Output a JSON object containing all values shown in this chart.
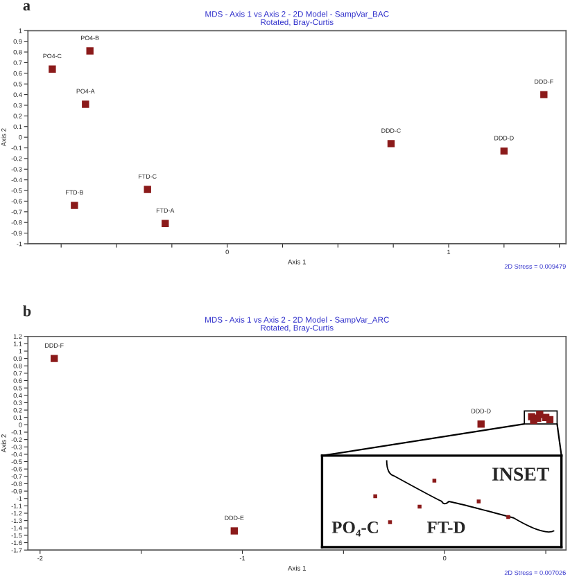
{
  "chart_data": [
    {
      "type": "scatter",
      "title": "MDS - Axis 1 vs Axis 2 - 2D Model - SampVar_BAC",
      "subtitle": "Rotated, Bray-Curtis",
      "xlabel": "Axis 1",
      "ylabel": "Axis 2",
      "marker": "square",
      "legend": false,
      "grid": false,
      "series": [
        {
          "color": "#8b1a1a",
          "x": [
            -0.79,
            -0.62,
            -0.64,
            1.43,
            0.74,
            1.25,
            -0.69,
            -0.36,
            -0.28
          ],
          "values": [
            0.64,
            0.81,
            0.31,
            0.4,
            -0.06,
            -0.13,
            -0.64,
            -0.49,
            -0.81
          ]
        }
      ],
      "xlim": [
        -0.9,
        1.53
      ],
      "xticks": [
        {
          "value": -0.75,
          "label": null
        },
        {
          "value": -0.5,
          "label": null
        },
        {
          "value": -0.25,
          "label": null
        },
        0,
        {
          "value": 0.25,
          "label": null
        },
        {
          "value": 0.5,
          "label": null
        },
        {
          "value": 0.75,
          "label": null
        },
        1,
        {
          "value": 1.25,
          "label": null
        },
        {
          "value": 1.5,
          "label": null
        }
      ],
      "ylim": [
        -1,
        1
      ],
      "yticks": [
        -1,
        -0.9,
        -0.8,
        -0.7,
        -0.6,
        -0.5,
        -0.4,
        -0.3,
        -0.2,
        -0.1,
        0,
        0.1,
        0.2,
        0.3,
        0.4,
        0.5,
        0.6,
        0.7,
        0.8,
        0.9,
        1
      ],
      "annotations": [
        "a",
        "2D Stress = 0.009479",
        {
          "text": "PO4-C",
          "x": -0.79,
          "y": 0.64
        },
        {
          "text": "PO4-B",
          "x": -0.62,
          "y": 0.81
        },
        {
          "text": "PO4-A",
          "x": -0.64,
          "y": 0.31
        },
        {
          "text": "DDD-F",
          "x": 1.43,
          "y": 0.4
        },
        {
          "text": "DDD-C",
          "x": 0.74,
          "y": -0.06
        },
        {
          "text": "DDD-D",
          "x": 1.25,
          "y": -0.13
        },
        {
          "text": "FTD-B",
          "x": -0.69,
          "y": -0.64
        },
        {
          "text": "FTD-C",
          "x": -0.36,
          "y": -0.49
        },
        {
          "text": "FTD-A",
          "x": -0.28,
          "y": -0.81
        }
      ]
    },
    {
      "type": "scatter",
      "title": "MDS - Axis 1 vs Axis 2 - 2D Model - SampVar_ARC",
      "subtitle": "Rotated, Bray-Curtis",
      "xlabel": "Axis 1",
      "ylabel": "Axis 2",
      "marker": "square",
      "legend": false,
      "grid": false,
      "series": [
        {
          "color": "#8b1a1a",
          "x": [
            -1.93,
            0.18,
            -1.04
          ],
          "values": [
            0.9,
            0.01,
            -1.44
          ]
        },
        {
          "color": "#8b1a1a",
          "x": [
            0.47,
            0.43,
            0.46,
            0.44,
            0.5,
            0.52
          ],
          "values": [
            0.14,
            0.11,
            0.09,
            0.06,
            0.1,
            0.07
          ]
        }
      ],
      "xlim": [
        -2.06,
        0.6
      ],
      "xticks": [
        -2,
        {
          "value": -1.5,
          "label": null
        },
        -1,
        {
          "value": -0.5,
          "label": null
        },
        0,
        {
          "value": 0.5,
          "label": null
        }
      ],
      "ylim": [
        -1.7,
        1.2
      ],
      "yticks": [
        -1.7,
        -1.6,
        -1.5,
        -1.4,
        -1.3,
        -1.2,
        -1.1,
        -1,
        -0.9,
        -0.8,
        -0.7,
        -0.6,
        -0.5,
        -0.4,
        -0.3,
        -0.2,
        -0.1,
        0,
        0.1,
        0.2,
        0.3,
        0.4,
        0.5,
        0.6,
        0.7,
        0.8,
        0.9,
        1,
        1.1,
        1.2
      ],
      "annotations": [
        "b",
        "2D Stress = 0.007026",
        "INSET",
        "PO₄-C",
        "FT-D",
        {
          "text": "DDD-F",
          "x": -1.93,
          "y": 0.9
        },
        {
          "text": "DDD-D",
          "x": 0.18,
          "y": 0.01
        },
        {
          "text": "DDD-E",
          "x": -1.04,
          "y": -1.44
        }
      ]
    }
  ]
}
